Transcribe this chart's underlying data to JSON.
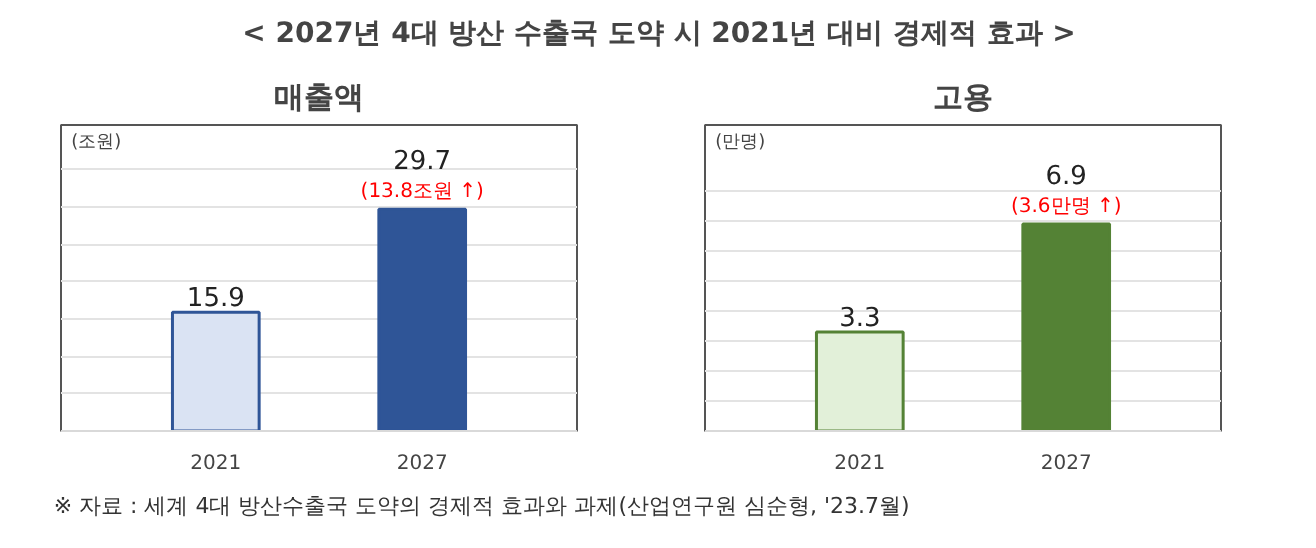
{
  "chart_data": [
    {
      "type": "other",
      "title": "< 2027년 4대 방산 수출국 도약 시 2021년 대비 경제적 효과 >",
      "annotations": [
        "※ 자료 : 세계 4대 방산수출국 도약의 경제적 효과와 과제(산업연구원 심순형, '23.7월)"
      ]
    },
    {
      "type": "bar",
      "title": "매출액",
      "ylabel": "(조원)",
      "categories": [
        "2021",
        "2027"
      ],
      "values": [
        15.9,
        29.7
      ],
      "colors": [
        "#dae3f3",
        "#2f5597"
      ],
      "data_labels": true,
      "annotations": [
        {
          "text": "(13.8조원 ↑)",
          "x": "2027",
          "y": 29.7
        }
      ],
      "ylim": [
        0,
        41
      ],
      "yticks": [
        {
          "value": 0,
          "label": null
        },
        {
          "value": 5,
          "label": null
        },
        {
          "value": 10,
          "label": null
        },
        {
          "value": 15,
          "label": null
        },
        {
          "value": 20,
          "label": null
        },
        {
          "value": 25,
          "label": null
        },
        {
          "value": 30,
          "label": null
        },
        {
          "value": 35,
          "label": null
        }
      ],
      "grid": "y",
      "tick_labels": "x"
    },
    {
      "type": "bar",
      "title": "고용",
      "ylabel": "(만명)",
      "categories": [
        "2021",
        "2027"
      ],
      "values": [
        3.3,
        6.9
      ],
      "colors": [
        "#e2f0d9",
        "#548235"
      ],
      "data_labels": true,
      "annotations": [
        {
          "text": "(3.6만명 ↑)",
          "x": "2027",
          "y": 6.9
        }
      ],
      "ylim": [
        0,
        10.2
      ],
      "yticks": [
        {
          "value": 0,
          "label": null
        },
        {
          "value": 1,
          "label": null
        },
        {
          "value": 2,
          "label": null
        },
        {
          "value": 3,
          "label": null
        },
        {
          "value": 4,
          "label": null
        },
        {
          "value": 5,
          "label": null
        },
        {
          "value": 6,
          "label": null
        },
        {
          "value": 7,
          "label": null
        },
        {
          "value": 8,
          "label": null
        }
      ],
      "grid": "y",
      "tick_labels": "x"
    }
  ]
}
